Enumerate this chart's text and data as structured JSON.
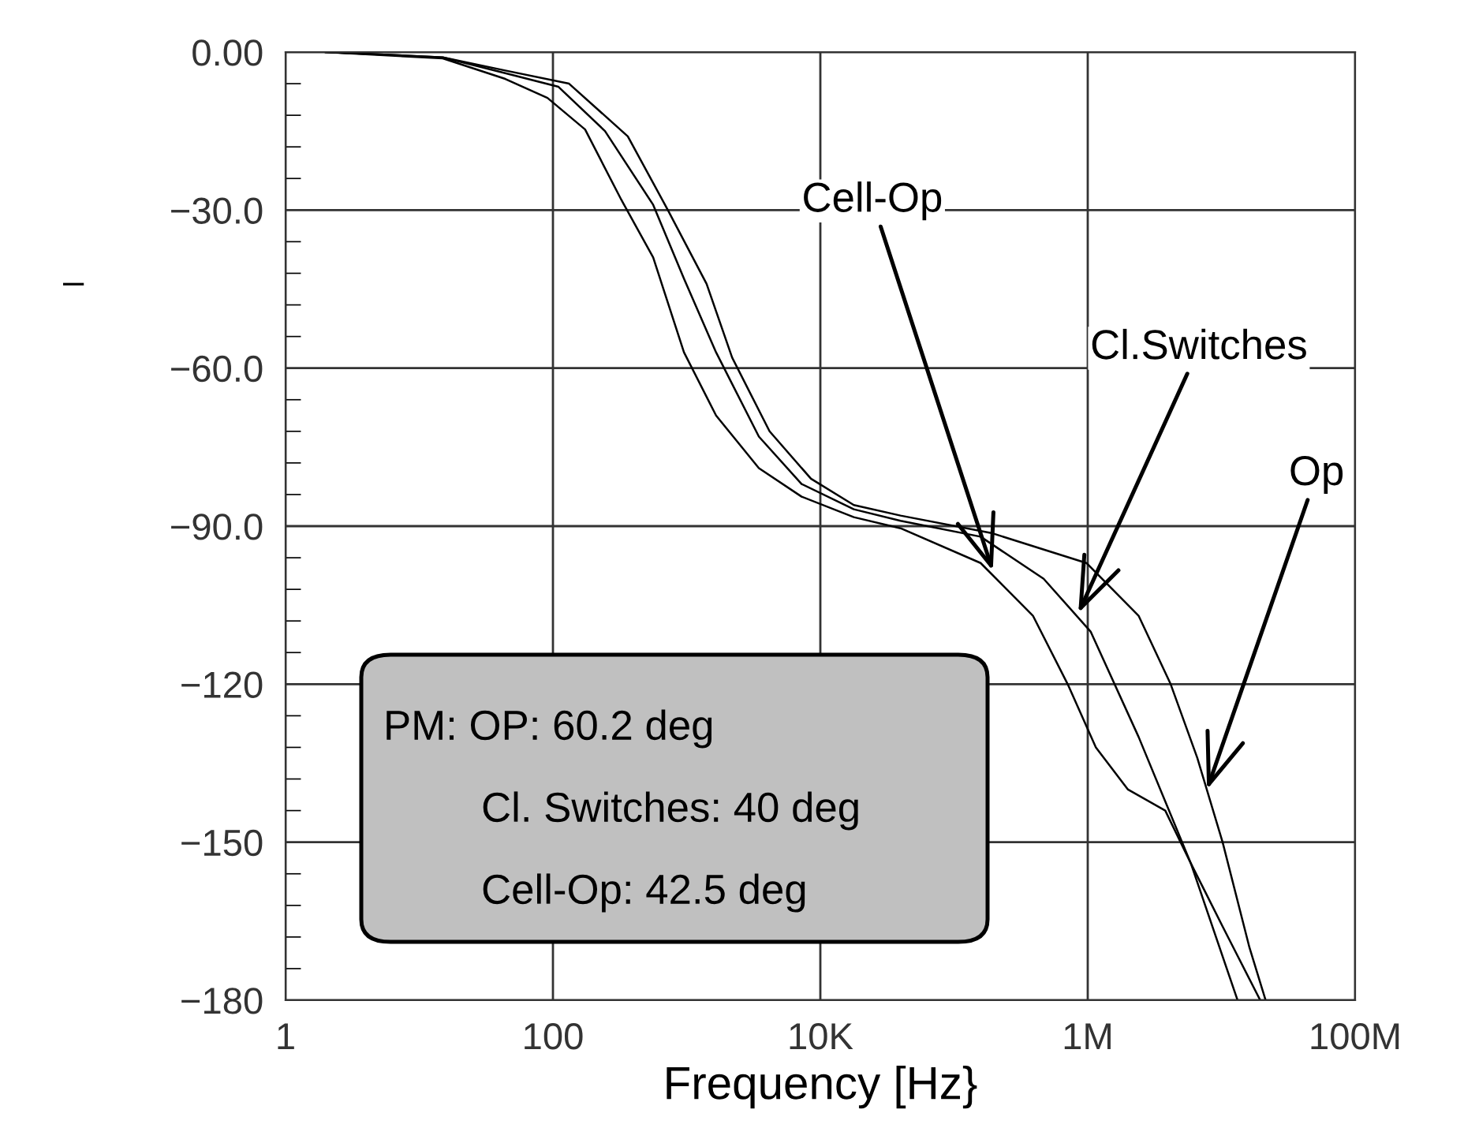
{
  "chart_data": {
    "type": "line",
    "xlabel": "Frequency [Hz}",
    "ylabel": "–",
    "log": "x",
    "grid": true,
    "marker": "none",
    "line_style": "solid",
    "xlim": [
      1,
      100000000
    ],
    "ylim": [
      -180,
      0
    ],
    "xticks": [
      {
        "value": 1,
        "label": "1"
      },
      {
        "value": 100,
        "label": "100"
      },
      {
        "value": 10000,
        "label": "10K"
      },
      {
        "value": 1000000,
        "label": "1M"
      },
      {
        "value": 100000000,
        "label": "100M"
      }
    ],
    "yticks": [
      {
        "value": 0,
        "label": "0.00"
      },
      {
        "value": -30,
        "label": "−30.0"
      },
      {
        "value": -60,
        "label": "−60.0"
      },
      {
        "value": -90,
        "label": "−90.0"
      },
      {
        "value": -120,
        "label": "−120"
      },
      {
        "value": -150,
        "label": "−150"
      },
      {
        "value": -180,
        "label": "−180"
      }
    ],
    "series": [
      {
        "color": "#000000",
        "x": [
          2,
          15,
          44,
          91,
          174,
          324,
          562,
          955,
          1660,
          3470,
          7240,
          17800,
          39800,
          158000,
          389000,
          708000,
          1150000,
          2000000,
          3800000,
          5900000,
          10200000,
          19500000
        ],
        "values": [
          0,
          -1.2,
          -5.1,
          -8.7,
          -14.7,
          -28,
          -39,
          -57,
          -69,
          -79,
          -84.4,
          -88.3,
          -90.4,
          -97,
          -107,
          -120,
          -132,
          -140,
          -144,
          -154,
          -166,
          -180
        ]
      },
      {
        "color": "#000000",
        "x": [
          2,
          15,
          44,
          110,
          245,
          562,
          955,
          1660,
          3470,
          7240,
          17800,
          39800,
          158000,
          468000,
          1050000,
          2400000,
          5900000,
          13200000
        ],
        "values": [
          0,
          -1,
          -4,
          -6.6,
          -15,
          -29,
          -43,
          -57,
          -73,
          -82,
          -86.8,
          -89,
          -92,
          -100,
          -110,
          -130,
          -154,
          -180
        ]
      },
      {
        "color": "#000000",
        "x": [
          2,
          15,
          44,
          132,
          363,
          724,
          1410,
          2190,
          4170,
          8510,
          17800,
          39800,
          190000,
          977000,
          2400000,
          4170000,
          6600000,
          10200000,
          16200000,
          21400000
        ],
        "values": [
          0,
          -1,
          -3.5,
          -6,
          -16,
          -30,
          -44,
          -58,
          -72,
          -81,
          -86,
          -88,
          -91.3,
          -97,
          -107,
          -120,
          -134,
          -150,
          -170,
          -180
        ]
      }
    ],
    "annotations": [
      {
        "text": "Cell-Op",
        "x": 195000,
        "y": -98.5
      },
      {
        "text": "Cl.Switches",
        "x": 851000,
        "y": -106.5
      },
      {
        "text": "Op",
        "x": 7800000,
        "y": -140
      },
      "PM: OP: 60.2 deg",
      "Cl. Switches: 40 deg",
      "Cell-Op: 42.5 deg"
    ]
  }
}
